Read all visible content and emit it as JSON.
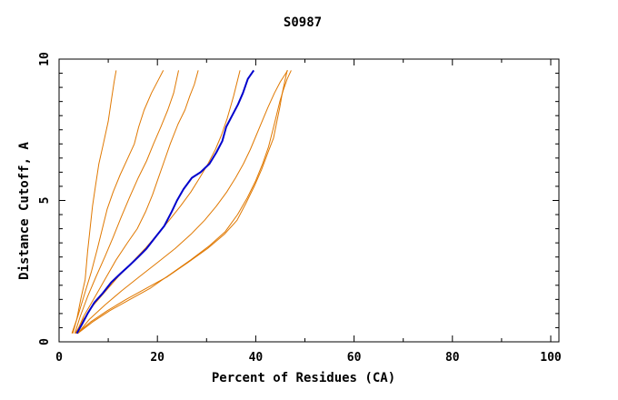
{
  "chart_data": {
    "type": "line",
    "title": "S0987",
    "xlabel": "Percent of Residues (CA)",
    "ylabel": "Distance Cutoff, A",
    "xlim": [
      0,
      100
    ],
    "ylim": [
      0,
      10
    ],
    "xticks": [
      0,
      20,
      40,
      60,
      80,
      100
    ],
    "yticks": [
      0,
      5,
      10
    ],
    "grid": false,
    "colors": {
      "highlight": "#0000cc",
      "others": "#e07800",
      "axes": "#000000"
    },
    "series": [
      {
        "color": "#e07800",
        "x": [
          2.8,
          3.6,
          4.4,
          5.3,
          5.8,
          6.3,
          6.8,
          7.4,
          8.1,
          9.0,
          10.0,
          10.6,
          11.2,
          11.6
        ],
        "y": [
          0.3,
          0.8,
          1.5,
          2.2,
          3.2,
          4.0,
          4.8,
          5.5,
          6.3,
          7.0,
          7.8,
          8.5,
          9.2,
          9.6
        ]
      },
      {
        "color": "#e07800",
        "x": [
          2.6,
          3.8,
          5.2,
          6.6,
          7.8,
          8.8,
          9.8,
          11.0,
          12.4,
          14.0,
          15.3,
          16.2,
          17.3,
          18.8,
          20.3,
          21.2
        ],
        "y": [
          0.3,
          0.9,
          1.7,
          2.5,
          3.3,
          4.0,
          4.7,
          5.3,
          5.9,
          6.5,
          7.0,
          7.6,
          8.2,
          8.8,
          9.3,
          9.6
        ]
      },
      {
        "color": "#e07800",
        "x": [
          3.2,
          4.3,
          5.8,
          7.5,
          9.3,
          11.0,
          12.6,
          14.3,
          16.1,
          17.8,
          19.2,
          20.7,
          22.1,
          23.3,
          24.3
        ],
        "y": [
          0.3,
          0.9,
          1.6,
          2.3,
          3.0,
          3.7,
          4.4,
          5.1,
          5.8,
          6.4,
          7.0,
          7.6,
          8.2,
          8.8,
          9.6
        ]
      },
      {
        "color": "#e07800",
        "x": [
          3.5,
          5.0,
          7.0,
          9.3,
          11.6,
          13.9,
          15.9,
          17.6,
          19.0,
          20.2,
          21.4,
          22.6,
          24.2,
          25.6,
          26.6,
          27.5,
          28.3
        ],
        "y": [
          0.3,
          0.9,
          1.5,
          2.2,
          2.9,
          3.5,
          4.0,
          4.6,
          5.2,
          5.8,
          6.4,
          7.0,
          7.7,
          8.2,
          8.7,
          9.1,
          9.6
        ]
      },
      {
        "color": "#0000cc",
        "x": [
          3.6,
          4.6,
          5.8,
          7.2,
          8.8,
          10.6,
          12.4,
          14.3,
          16.1,
          17.8,
          19.6,
          21.4,
          22.9,
          24.0,
          25.3,
          27.0,
          28.8,
          30.6,
          32.0,
          33.2,
          34.0,
          35.2,
          36.4,
          37.4,
          38.4,
          39.6
        ],
        "y": [
          0.3,
          0.6,
          1.0,
          1.4,
          1.7,
          2.1,
          2.4,
          2.7,
          3.0,
          3.3,
          3.7,
          4.1,
          4.6,
          5.0,
          5.4,
          5.8,
          6.0,
          6.3,
          6.7,
          7.1,
          7.6,
          8.0,
          8.4,
          8.8,
          9.3,
          9.6
        ]
      },
      {
        "color": "#e07800",
        "x": [
          3.3,
          5.0,
          7.0,
          9.5,
          12.0,
          14.8,
          17.5,
          20.0,
          22.4,
          24.7,
          26.8,
          28.6,
          30.3,
          31.8,
          33.0,
          34.2,
          35.5,
          36.8
        ],
        "y": [
          0.3,
          0.8,
          1.3,
          1.8,
          2.3,
          2.8,
          3.3,
          3.8,
          4.3,
          4.8,
          5.3,
          5.8,
          6.3,
          6.8,
          7.3,
          7.9,
          8.7,
          9.6
        ]
      },
      {
        "color": "#e07800",
        "x": [
          3.8,
          6.2,
          9.3,
          12.7,
          16.3,
          20.0,
          23.6,
          26.8,
          29.6,
          32.0,
          34.1,
          35.9,
          37.5,
          38.9,
          40.1,
          41.3,
          42.5,
          43.8,
          45.0,
          46.5
        ],
        "y": [
          0.3,
          0.8,
          1.3,
          1.8,
          2.3,
          2.8,
          3.3,
          3.8,
          4.3,
          4.8,
          5.3,
          5.8,
          6.3,
          6.8,
          7.3,
          7.8,
          8.3,
          8.8,
          9.2,
          9.6
        ]
      },
      {
        "color": "#e07800",
        "x": [
          3.8,
          6.8,
          10.3,
          14.4,
          18.6,
          22.7,
          26.8,
          30.6,
          33.8,
          36.3,
          38.3,
          40.0,
          41.4,
          42.6,
          43.5,
          44.2,
          44.9,
          45.6,
          46.4,
          47.2
        ],
        "y": [
          0.3,
          0.7,
          1.1,
          1.5,
          1.9,
          2.4,
          2.9,
          3.4,
          3.9,
          4.5,
          5.1,
          5.7,
          6.3,
          6.9,
          7.5,
          8.0,
          8.5,
          8.9,
          9.3,
          9.6
        ]
      },
      {
        "color": "#e07800",
        "x": [
          3.6,
          6.4,
          9.8,
          13.6,
          17.8,
          22.0,
          26.2,
          30.2,
          33.6,
          36.2,
          38.0,
          39.7,
          41.2,
          42.5,
          43.6,
          44.3,
          44.9,
          45.4,
          45.9,
          46.4
        ],
        "y": [
          0.3,
          0.7,
          1.1,
          1.5,
          1.9,
          2.3,
          2.8,
          3.3,
          3.8,
          4.3,
          4.9,
          5.5,
          6.1,
          6.7,
          7.2,
          7.8,
          8.3,
          8.8,
          9.2,
          9.6
        ]
      }
    ]
  }
}
